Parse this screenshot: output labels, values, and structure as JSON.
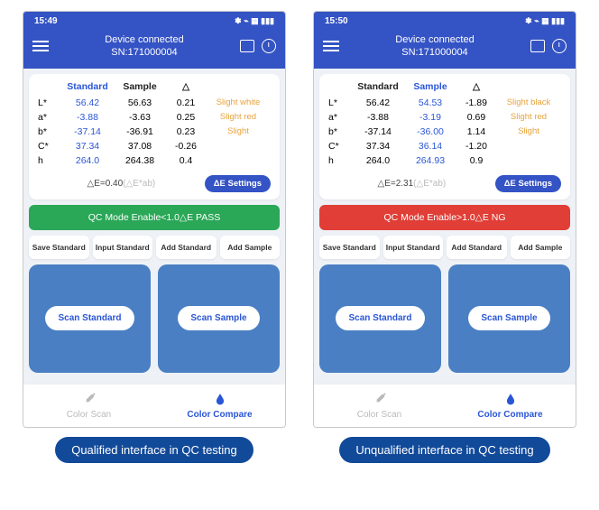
{
  "left": {
    "status": {
      "time": "15:49",
      "icons": "✽ ⌁ ▦ ▮▮▮"
    },
    "header": {
      "title": "Device connected",
      "sn": "SN:171000004"
    },
    "columns": {
      "standard": "Standard",
      "sample": "Sample",
      "delta": "△",
      "standardBlue": true,
      "sampleBlue": false
    },
    "rows": [
      {
        "label": "L*",
        "std": "56.42",
        "smp": "56.63",
        "d": "0.21",
        "note": "Slight white",
        "stdBlue": true,
        "smpBlue": false
      },
      {
        "label": "a*",
        "std": "-3.88",
        "smp": "-3.63",
        "d": "0.25",
        "note": "Slight red",
        "stdBlue": true,
        "smpBlue": false
      },
      {
        "label": "b*",
        "std": "-37.14",
        "smp": "-36.91",
        "d": "0.23",
        "note": "Slight",
        "stdBlue": true,
        "smpBlue": false
      },
      {
        "label": "C*",
        "std": "37.34",
        "smp": "37.08",
        "d": "-0.26",
        "note": "",
        "stdBlue": true,
        "smpBlue": false
      },
      {
        "label": "h",
        "std": "264.0",
        "smp": "264.38",
        "d": "0.4",
        "note": "",
        "stdBlue": true,
        "smpBlue": false
      }
    ],
    "de": {
      "pre": "△E=0.40",
      "gray": "(△E*ab)",
      "btn": "ΔE Settings"
    },
    "qc": {
      "text": "QC Mode Enable<1.0△E   PASS",
      "class": "qc-pass"
    },
    "smallBtns": [
      "Save Standard",
      "Input Standard",
      "Add Standard",
      "Add Sample"
    ],
    "scan": {
      "left": "Scan Standard",
      "right": "Scan Sample"
    },
    "nav": {
      "left": "Color Scan",
      "right": "Color Compare"
    },
    "caption": "Qualified interface in QC testing"
  },
  "right": {
    "status": {
      "time": "15:50",
      "icons": "✽ ⌁ ▦ ▮▮▮"
    },
    "header": {
      "title": "Device connected",
      "sn": "SN:171000004"
    },
    "columns": {
      "standard": "Standard",
      "sample": "Sample",
      "delta": "△",
      "standardBlue": false,
      "sampleBlue": true
    },
    "rows": [
      {
        "label": "L*",
        "std": "56.42",
        "smp": "54.53",
        "d": "-1.89",
        "note": "Slight black",
        "stdBlue": false,
        "smpBlue": true
      },
      {
        "label": "a*",
        "std": "-3.88",
        "smp": "-3.19",
        "d": "0.69",
        "note": "Slight red",
        "stdBlue": false,
        "smpBlue": true
      },
      {
        "label": "b*",
        "std": "-37.14",
        "smp": "-36.00",
        "d": "1.14",
        "note": "Slight",
        "stdBlue": false,
        "smpBlue": true
      },
      {
        "label": "C*",
        "std": "37.34",
        "smp": "36.14",
        "d": "-1.20",
        "note": "",
        "stdBlue": false,
        "smpBlue": true
      },
      {
        "label": "h",
        "std": "264.0",
        "smp": "264.93",
        "d": "0.9",
        "note": "",
        "stdBlue": false,
        "smpBlue": true
      }
    ],
    "de": {
      "pre": "△E=2.31",
      "gray": "(△E*ab)",
      "btn": "ΔE Settings"
    },
    "qc": {
      "text": "QC Mode Enable>1.0△E   NG",
      "class": "qc-ng"
    },
    "smallBtns": [
      "Save Standard",
      "Input Standard",
      "Add Standard",
      "Add Sample"
    ],
    "scan": {
      "left": "Scan Standard",
      "right": "Scan Sample"
    },
    "nav": {
      "left": "Color Scan",
      "right": "Color Compare"
    },
    "caption": "Unqualified interface in QC testing"
  }
}
